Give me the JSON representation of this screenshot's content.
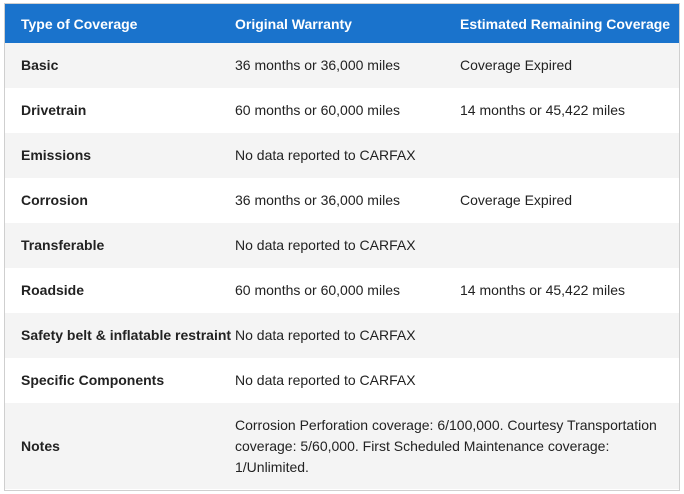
{
  "table": {
    "headers": [
      "Type of Coverage",
      "Original Warranty",
      "Estimated Remaining Coverage"
    ],
    "rows": [
      {
        "type": "Basic",
        "original": "36 months or 36,000 miles",
        "remaining": "Coverage Expired"
      },
      {
        "type": "Drivetrain",
        "original": "60 months or 60,000 miles",
        "remaining": "14 months or 45,422 miles"
      },
      {
        "type": "Emissions",
        "original": "No data reported to CARFAX",
        "remaining": ""
      },
      {
        "type": "Corrosion",
        "original": "36 months or 36,000 miles",
        "remaining": "Coverage Expired"
      },
      {
        "type": "Transferable",
        "original": "No data reported to CARFAX",
        "remaining": ""
      },
      {
        "type": "Roadside",
        "original": "60 months or 60,000 miles",
        "remaining": "14 months or 45,422 miles"
      },
      {
        "type": "Safety belt & inflatable restraint",
        "original": "No data reported to CARFAX",
        "remaining": ""
      },
      {
        "type": "Specific Components",
        "original": "No data reported to CARFAX",
        "remaining": ""
      },
      {
        "type": "Notes",
        "original": "Corrosion Perforation coverage: 6/100,000. Courtesy Transportation coverage: 5/60,000. First Scheduled Maintenance coverage: 1/Unlimited.",
        "remaining": ""
      }
    ]
  },
  "colors": {
    "header_bg": "#1a73cc",
    "header_text": "#ffffff",
    "row_alt_bg": "#f4f4f4",
    "border": "#cfcfcf"
  }
}
